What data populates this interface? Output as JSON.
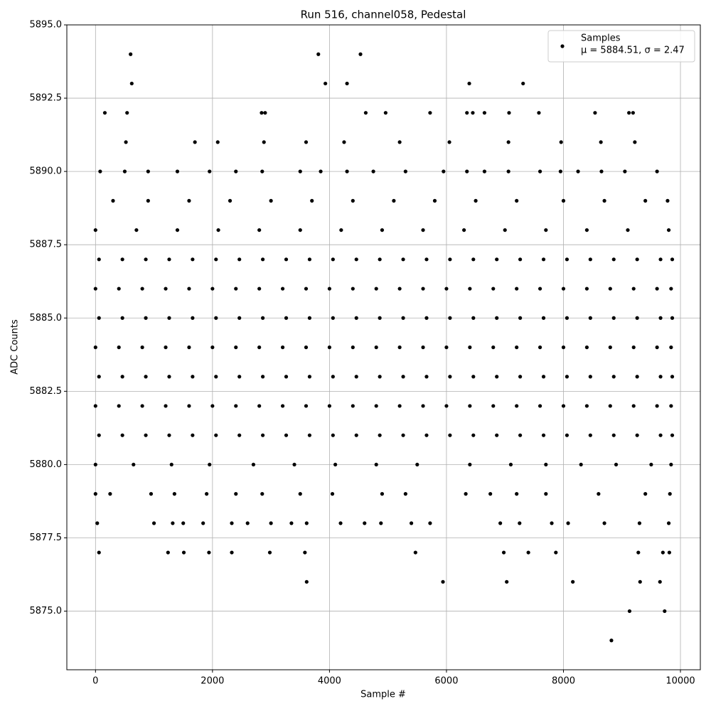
{
  "chart_data": {
    "type": "scatter",
    "title": "Run 516, channel058, Pedestal",
    "x_label": "Sample #",
    "y_label": "ADC Counts",
    "xlim": [
      -490,
      10340
    ],
    "ylim": [
      5873,
      5895
    ],
    "xticks": [
      0,
      2000,
      4000,
      6000,
      8000,
      10000
    ],
    "yticks": [
      {
        "value": 5875,
        "label": "5875.0"
      },
      {
        "value": 5877.5,
        "label": "5877.5"
      },
      {
        "value": 5880,
        "label": "5880.0"
      },
      {
        "value": 5882.5,
        "label": "5882.5"
      },
      {
        "value": 5885,
        "label": "5885.0"
      },
      {
        "value": 5887.5,
        "label": "5887.5"
      },
      {
        "value": 5890,
        "label": "5890.0"
      },
      {
        "value": 5892.5,
        "label": "5892.5"
      },
      {
        "value": 5895,
        "label": "5895.0"
      }
    ],
    "grid": true,
    "legend": "upper right",
    "legend_note": "μ = 5884.51, σ = 2.47",
    "series": [
      {
        "name": "Samples",
        "color": "#000000",
        "x": [
          600,
          3810,
          4530,
          620,
          3930,
          4300,
          6390,
          7310,
          160,
          540,
          2840,
          2900,
          4620,
          4960,
          5720,
          6350,
          6450,
          6650,
          7070,
          7580,
          8540,
          9120,
          9190,
          520,
          1700,
          2090,
          2880,
          3600,
          4250,
          5200,
          6050,
          7060,
          7960,
          8640,
          9220,
          80,
          500,
          900,
          1400,
          1950,
          2400,
          2850,
          3500,
          3850,
          4300,
          4750,
          5300,
          5950,
          6350,
          6650,
          7060,
          7600,
          7950,
          8250,
          8650,
          9050,
          9600,
          300,
          900,
          1600,
          2300,
          3000,
          3700,
          4400,
          5100,
          5800,
          6500,
          7200,
          8000,
          8700,
          9400,
          9780,
          0,
          700,
          1400,
          2100,
          2800,
          3500,
          4200,
          4900,
          5600,
          6300,
          7000,
          7700,
          8400,
          9100,
          9800,
          60,
          460,
          860,
          1260,
          1660,
          2060,
          2460,
          2860,
          3260,
          3660,
          4060,
          4460,
          4860,
          5260,
          5660,
          6060,
          6460,
          6860,
          7260,
          7660,
          8060,
          8460,
          8860,
          9260,
          9660,
          9860,
          0,
          400,
          800,
          1200,
          1600,
          2000,
          2400,
          2800,
          3200,
          3600,
          4000,
          4400,
          4800,
          5200,
          5600,
          6000,
          6400,
          6800,
          7200,
          7600,
          8000,
          8400,
          8800,
          9200,
          9600,
          9840,
          60,
          460,
          860,
          1260,
          1660,
          2060,
          2460,
          2860,
          3260,
          3660,
          4060,
          4460,
          4860,
          5260,
          5660,
          6060,
          6460,
          6860,
          7260,
          7660,
          8060,
          8460,
          8860,
          9260,
          9660,
          9860,
          0,
          400,
          800,
          1200,
          1600,
          2000,
          2400,
          2800,
          3200,
          3600,
          4000,
          4400,
          4800,
          5200,
          5600,
          6000,
          6400,
          6800,
          7200,
          7600,
          8000,
          8400,
          8800,
          9200,
          9600,
          9840,
          60,
          460,
          860,
          1260,
          1660,
          2060,
          2460,
          2860,
          3260,
          3660,
          4060,
          4460,
          4860,
          5260,
          5660,
          6060,
          6460,
          6860,
          7260,
          7660,
          8060,
          8460,
          8860,
          9260,
          9660,
          9860,
          0,
          400,
          800,
          1200,
          1600,
          2000,
          2400,
          2800,
          3200,
          3600,
          4000,
          4400,
          4800,
          5200,
          5600,
          6000,
          6400,
          6800,
          7200,
          7600,
          8000,
          8400,
          8800,
          9200,
          9600,
          9840,
          60,
          460,
          860,
          1260,
          1660,
          2060,
          2460,
          2860,
          3260,
          3660,
          4060,
          4460,
          4860,
          5260,
          5660,
          6060,
          6460,
          6860,
          7260,
          7660,
          8060,
          8460,
          8860,
          9260,
          9660,
          9860,
          0,
          650,
          1300,
          1950,
          2700,
          3400,
          4100,
          4800,
          5500,
          6400,
          7100,
          7700,
          8300,
          8900,
          9500,
          9840,
          0,
          250,
          950,
          1350,
          1900,
          2400,
          2850,
          3500,
          4050,
          4900,
          5300,
          6330,
          6750,
          7200,
          7700,
          8600,
          9400,
          9820,
          30,
          1000,
          1320,
          1500,
          1840,
          2330,
          2600,
          3000,
          3350,
          3610,
          4190,
          4600,
          4880,
          5400,
          5720,
          6920,
          7250,
          7800,
          8080,
          8700,
          9300,
          9800,
          60,
          1240,
          1510,
          1940,
          2330,
          2980,
          3580,
          5470,
          6980,
          7400,
          7870,
          9280,
          9700,
          9810,
          3610,
          5940,
          7030,
          8160,
          9310,
          9650,
          9130,
          9730,
          8820
        ],
        "values": [
          5894,
          5894,
          5894,
          5893,
          5893,
          5893,
          5893,
          5893,
          5892,
          5892,
          5892,
          5892,
          5892,
          5892,
          5892,
          5892,
          5892,
          5892,
          5892,
          5892,
          5892,
          5892,
          5892,
          5891,
          5891,
          5891,
          5891,
          5891,
          5891,
          5891,
          5891,
          5891,
          5891,
          5891,
          5891,
          5890,
          5890,
          5890,
          5890,
          5890,
          5890,
          5890,
          5890,
          5890,
          5890,
          5890,
          5890,
          5890,
          5890,
          5890,
          5890,
          5890,
          5890,
          5890,
          5890,
          5890,
          5890,
          5889,
          5889,
          5889,
          5889,
          5889,
          5889,
          5889,
          5889,
          5889,
          5889,
          5889,
          5889,
          5889,
          5889,
          5889,
          5888,
          5888,
          5888,
          5888,
          5888,
          5888,
          5888,
          5888,
          5888,
          5888,
          5888,
          5888,
          5888,
          5888,
          5888,
          5887,
          5887,
          5887,
          5887,
          5887,
          5887,
          5887,
          5887,
          5887,
          5887,
          5887,
          5887,
          5887,
          5887,
          5887,
          5887,
          5887,
          5887,
          5887,
          5887,
          5887,
          5887,
          5887,
          5887,
          5887,
          5887,
          5886,
          5886,
          5886,
          5886,
          5886,
          5886,
          5886,
          5886,
          5886,
          5886,
          5886,
          5886,
          5886,
          5886,
          5886,
          5886,
          5886,
          5886,
          5886,
          5886,
          5886,
          5886,
          5886,
          5886,
          5886,
          5886,
          5885,
          5885,
          5885,
          5885,
          5885,
          5885,
          5885,
          5885,
          5885,
          5885,
          5885,
          5885,
          5885,
          5885,
          5885,
          5885,
          5885,
          5885,
          5885,
          5885,
          5885,
          5885,
          5885,
          5885,
          5885,
          5885,
          5884,
          5884,
          5884,
          5884,
          5884,
          5884,
          5884,
          5884,
          5884,
          5884,
          5884,
          5884,
          5884,
          5884,
          5884,
          5884,
          5884,
          5884,
          5884,
          5884,
          5884,
          5884,
          5884,
          5884,
          5884,
          5884,
          5883,
          5883,
          5883,
          5883,
          5883,
          5883,
          5883,
          5883,
          5883,
          5883,
          5883,
          5883,
          5883,
          5883,
          5883,
          5883,
          5883,
          5883,
          5883,
          5883,
          5883,
          5883,
          5883,
          5883,
          5883,
          5883,
          5882,
          5882,
          5882,
          5882,
          5882,
          5882,
          5882,
          5882,
          5882,
          5882,
          5882,
          5882,
          5882,
          5882,
          5882,
          5882,
          5882,
          5882,
          5882,
          5882,
          5882,
          5882,
          5882,
          5882,
          5882,
          5882,
          5881,
          5881,
          5881,
          5881,
          5881,
          5881,
          5881,
          5881,
          5881,
          5881,
          5881,
          5881,
          5881,
          5881,
          5881,
          5881,
          5881,
          5881,
          5881,
          5881,
          5881,
          5881,
          5881,
          5881,
          5881,
          5881,
          5880,
          5880,
          5880,
          5880,
          5880,
          5880,
          5880,
          5880,
          5880,
          5880,
          5880,
          5880,
          5880,
          5880,
          5880,
          5880,
          5879,
          5879,
          5879,
          5879,
          5879,
          5879,
          5879,
          5879,
          5879,
          5879,
          5879,
          5879,
          5879,
          5879,
          5879,
          5879,
          5879,
          5879,
          5878,
          5878,
          5878,
          5878,
          5878,
          5878,
          5878,
          5878,
          5878,
          5878,
          5878,
          5878,
          5878,
          5878,
          5878,
          5878,
          5878,
          5878,
          5878,
          5878,
          5878,
          5878,
          5877,
          5877,
          5877,
          5877,
          5877,
          5877,
          5877,
          5877,
          5877,
          5877,
          5877,
          5877,
          5877,
          5877,
          5876,
          5876,
          5876,
          5876,
          5876,
          5876,
          5875,
          5875,
          5874
        ]
      }
    ]
  }
}
